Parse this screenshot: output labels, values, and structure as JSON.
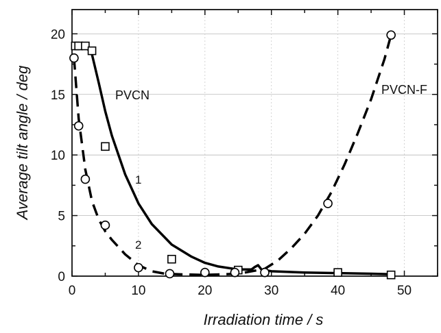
{
  "chart_data": {
    "type": "scatter",
    "title": "",
    "xlabel": "Irradiation time / s",
    "ylabel": "Average tilt angle / deg",
    "xlim": [
      0,
      55
    ],
    "ylim": [
      0,
      22
    ],
    "xticks": [
      0,
      10,
      20,
      30,
      40,
      50
    ],
    "yticks": [
      0,
      5,
      10,
      15,
      20
    ],
    "grid": true,
    "series": [
      {
        "name": "PVCN",
        "marker": "square",
        "x": [
          0.5,
          1.0,
          2.0,
          3.0,
          5.0,
          15.0,
          25.0,
          40.0,
          48.0
        ],
        "y": [
          19.0,
          19.0,
          19.0,
          18.6,
          10.7,
          1.4,
          0.5,
          0.3,
          0.1
        ],
        "curve_label": "1",
        "curve_style": "solid",
        "curve": {
          "x": [
            0.5,
            2,
            3,
            4,
            5,
            6,
            8,
            10,
            12,
            15,
            18,
            20,
            22,
            25,
            27,
            27.5,
            28,
            28.5,
            30,
            35,
            40,
            45,
            48
          ],
          "y": [
            19.1,
            19.0,
            18.3,
            16.0,
            13.6,
            11.6,
            8.4,
            6.0,
            4.3,
            2.6,
            1.6,
            1.1,
            0.8,
            0.55,
            0.55,
            0.75,
            0.9,
            0.55,
            0.4,
            0.3,
            0.25,
            0.2,
            0.15
          ]
        }
      },
      {
        "name": "PVCN-F",
        "marker": "circle",
        "x": [
          0.3,
          1.0,
          2.0,
          5.0,
          10.0,
          14.7,
          20.0,
          24.5,
          29.0,
          38.5,
          48.0
        ],
        "y": [
          18.0,
          12.4,
          8.0,
          4.2,
          0.7,
          0.2,
          0.3,
          0.3,
          0.3,
          6.0,
          19.9
        ],
        "curve_label": "2",
        "curve_style": "dashed",
        "curve": {
          "x": [
            0.3,
            1,
            2,
            3,
            4,
            5,
            6,
            8,
            10,
            12,
            14,
            16,
            20,
            25,
            29,
            31,
            33,
            35,
            37,
            39,
            41,
            43,
            45,
            47,
            48
          ],
          "y": [
            18.0,
            13.0,
            8.8,
            6.2,
            4.7,
            3.7,
            3.0,
            1.8,
            0.9,
            0.4,
            0.2,
            0.15,
            0.1,
            0.2,
            0.6,
            1.3,
            2.3,
            3.5,
            5.0,
            6.9,
            9.2,
            11.8,
            14.6,
            17.9,
            19.9
          ]
        }
      }
    ],
    "annotations": [
      "PVCN",
      "PVCN-F",
      "1",
      "2"
    ]
  }
}
